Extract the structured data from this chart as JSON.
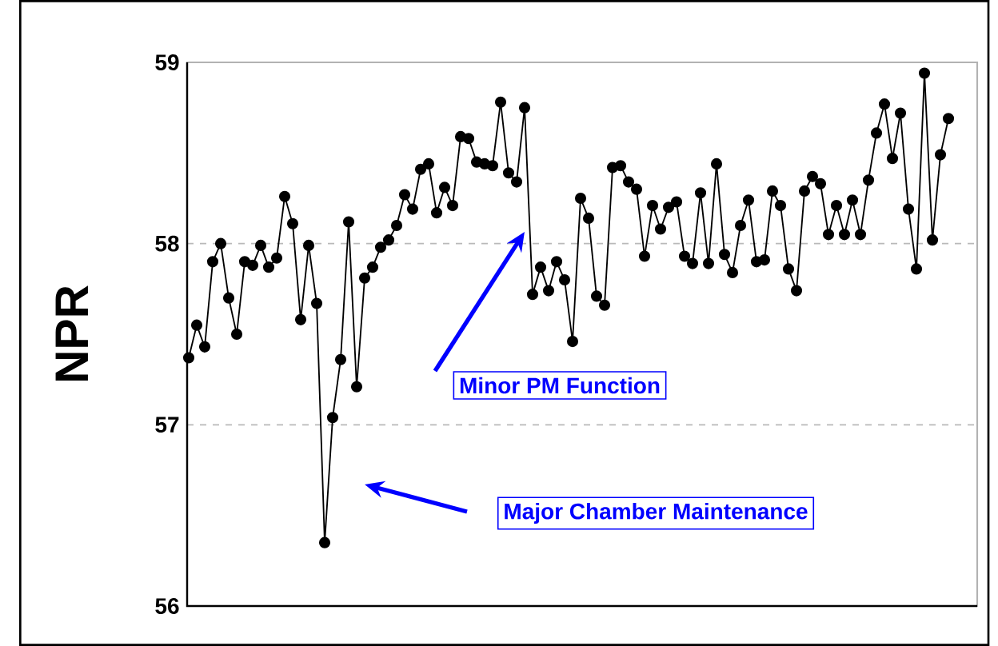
{
  "chart_data": {
    "type": "line",
    "ylabel": "NPR",
    "categories": [
      null,
      null,
      null,
      null,
      null,
      null,
      null,
      null,
      null,
      null,
      null,
      null,
      null,
      null,
      null,
      null,
      null,
      null,
      null,
      null,
      null,
      null,
      null,
      null,
      null,
      null,
      null,
      null,
      null,
      null,
      null,
      null,
      null,
      null,
      null,
      null,
      null,
      null,
      null,
      null,
      null,
      null,
      null,
      null,
      null,
      null,
      null,
      null,
      null,
      null,
      null,
      null,
      null,
      null,
      null,
      null,
      null,
      null,
      null,
      null,
      null,
      null,
      null,
      null,
      null,
      null,
      null,
      null,
      null,
      null,
      null,
      null,
      null,
      null,
      null,
      null,
      null,
      null,
      null,
      null,
      null,
      null,
      null,
      null,
      null,
      null,
      null,
      null,
      null,
      null,
      null,
      null,
      null,
      null,
      null,
      null
    ],
    "series": [
      {
        "color": "#000000",
        "values": [
          57.37,
          57.55,
          57.43,
          57.9,
          58.0,
          57.7,
          57.5,
          57.9,
          57.88,
          57.99,
          57.87,
          57.92,
          58.26,
          58.11,
          57.58,
          57.99,
          57.67,
          56.35,
          57.04,
          57.36,
          58.12,
          57.21,
          57.81,
          57.87,
          57.98,
          58.02,
          58.1,
          58.27,
          58.19,
          58.41,
          58.44,
          58.17,
          58.31,
          58.21,
          58.59,
          58.58,
          58.45,
          58.44,
          58.43,
          58.78,
          58.39,
          58.34,
          58.75,
          57.72,
          57.87,
          57.74,
          57.9,
          57.8,
          57.46,
          58.25,
          58.14,
          57.71,
          57.66,
          58.42,
          58.43,
          58.34,
          58.3,
          57.93,
          58.21,
          58.08,
          58.2,
          58.23,
          57.93,
          57.89,
          58.28,
          57.89,
          58.44,
          57.94,
          57.84,
          58.1,
          58.24,
          57.9,
          57.91,
          58.29,
          58.21,
          57.86,
          57.74,
          58.29,
          58.37,
          58.33,
          58.05,
          58.21,
          58.05,
          58.24,
          58.05,
          58.35,
          58.61,
          58.77,
          58.47,
          58.72,
          58.19,
          57.86,
          58.94,
          58.02,
          58.49,
          58.69
        ]
      }
    ],
    "ylim": [
      56,
      59
    ],
    "yticks": [
      56,
      57,
      58,
      59
    ],
    "grid": "y",
    "marker": "circle",
    "line_style": "solid",
    "tick_labels": "y",
    "annotations": [
      "Minor PM Function",
      "Major Chamber Maintenance"
    ]
  }
}
